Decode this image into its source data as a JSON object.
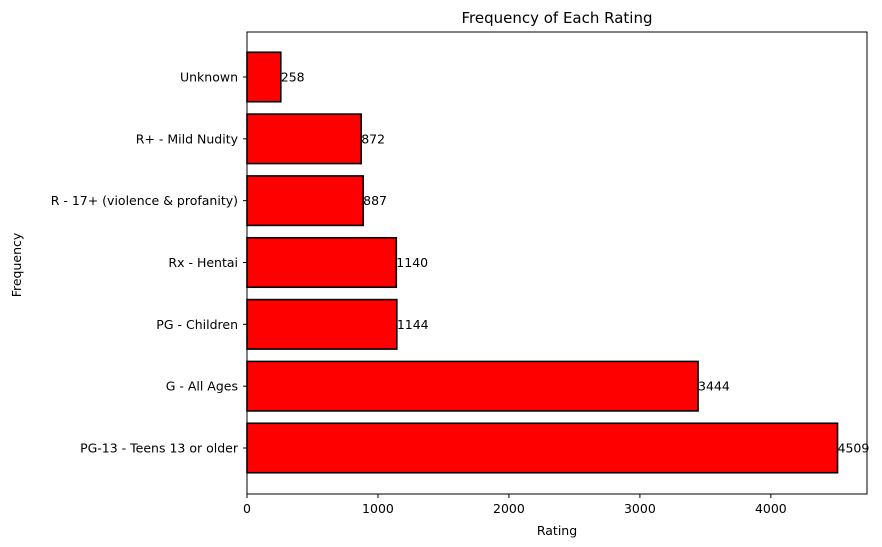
{
  "chart_data": {
    "type": "bar",
    "orientation": "horizontal",
    "title": "Frequency of Each Rating",
    "xlabel": "Rating",
    "ylabel": "Frequency",
    "categories": [
      "PG-13 - Teens 13 or older",
      "G - All Ages",
      "PG - Children",
      "Rx - Hentai",
      "R - 17+ (violence & profanity)",
      "R+ - Mild Nudity",
      "Unknown"
    ],
    "values": [
      4509,
      3444,
      1144,
      1140,
      887,
      872,
      258
    ],
    "xlim": [
      0,
      4734
    ],
    "xticks": [
      0,
      1000,
      2000,
      3000,
      4000
    ],
    "grid": false,
    "bar_color": "#ff0000",
    "edge_color": "#000000"
  }
}
